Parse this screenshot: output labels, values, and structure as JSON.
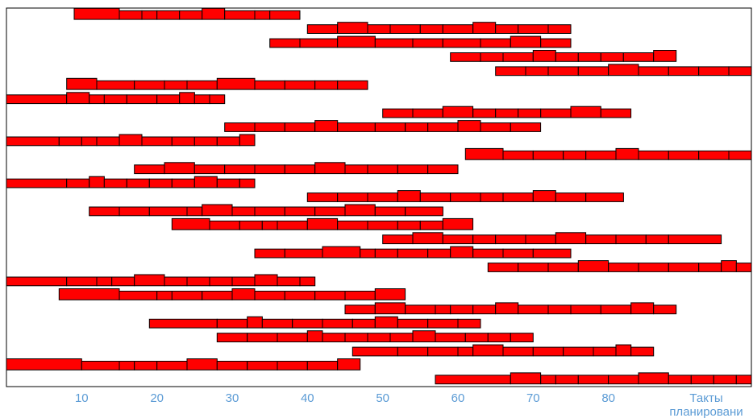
{
  "chart_data": {
    "type": "bar",
    "orientation": "horizontal-timeline",
    "xlabel_lines": [
      "Такты",
      "планировани"
    ],
    "xlim": [
      0,
      99
    ],
    "xticks": [
      10,
      20,
      30,
      40,
      50,
      60,
      70,
      80
    ],
    "grid": false,
    "legend": "none",
    "bar_color": "#ff0000",
    "bar_outline_color": "#000000",
    "rows": [
      {
        "y": 1,
        "segments": [
          [
            9,
            15
          ],
          [
            15,
            18
          ],
          [
            18,
            20
          ],
          [
            20,
            23
          ],
          [
            23,
            26
          ],
          [
            26,
            29
          ],
          [
            29,
            33
          ],
          [
            33,
            35
          ],
          [
            35,
            39
          ]
        ]
      },
      {
        "y": 2,
        "segments": [
          [
            40,
            44
          ],
          [
            44,
            48
          ],
          [
            48,
            51
          ],
          [
            51,
            55
          ],
          [
            55,
            58
          ],
          [
            58,
            62
          ],
          [
            62,
            65
          ],
          [
            65,
            68
          ],
          [
            68,
            72
          ],
          [
            72,
            75
          ]
        ]
      },
      {
        "y": 3,
        "segments": [
          [
            35,
            39
          ],
          [
            39,
            44
          ],
          [
            44,
            49
          ],
          [
            49,
            54
          ],
          [
            54,
            58
          ],
          [
            58,
            63
          ],
          [
            63,
            67
          ],
          [
            67,
            71
          ],
          [
            71,
            75
          ]
        ]
      },
      {
        "y": 4,
        "segments": [
          [
            59,
            63
          ],
          [
            63,
            66
          ],
          [
            66,
            70
          ],
          [
            70,
            73
          ],
          [
            73,
            76
          ],
          [
            76,
            79
          ],
          [
            79,
            82
          ],
          [
            82,
            86
          ],
          [
            86,
            89
          ]
        ]
      },
      {
        "y": 5,
        "segments": [
          [
            65,
            69
          ],
          [
            69,
            72
          ],
          [
            72,
            76
          ],
          [
            76,
            80
          ],
          [
            80,
            84
          ],
          [
            84,
            88
          ],
          [
            88,
            92
          ],
          [
            92,
            96
          ],
          [
            96,
            99
          ]
        ]
      },
      {
        "y": 6,
        "segments": [
          [
            8,
            12
          ],
          [
            12,
            17
          ],
          [
            17,
            21
          ],
          [
            21,
            24
          ],
          [
            24,
            28
          ],
          [
            28,
            33
          ],
          [
            33,
            37
          ],
          [
            37,
            41
          ],
          [
            41,
            44
          ],
          [
            44,
            48
          ]
        ]
      },
      {
        "y": 7,
        "segments": [
          [
            0,
            8
          ],
          [
            8,
            11
          ],
          [
            11,
            13
          ],
          [
            13,
            16
          ],
          [
            16,
            20
          ],
          [
            20,
            23
          ],
          [
            23,
            25
          ],
          [
            25,
            27
          ],
          [
            27,
            29
          ]
        ]
      },
      {
        "y": 8,
        "segments": [
          [
            50,
            54
          ],
          [
            54,
            58
          ],
          [
            58,
            62
          ],
          [
            62,
            65
          ],
          [
            65,
            68
          ],
          [
            68,
            71
          ],
          [
            71,
            75
          ],
          [
            75,
            79
          ],
          [
            79,
            83
          ]
        ]
      },
      {
        "y": 9,
        "segments": [
          [
            29,
            33
          ],
          [
            33,
            37
          ],
          [
            37,
            41
          ],
          [
            41,
            44
          ],
          [
            44,
            49
          ],
          [
            49,
            53
          ],
          [
            53,
            56
          ],
          [
            56,
            60
          ],
          [
            60,
            63
          ],
          [
            63,
            67
          ],
          [
            67,
            71
          ]
        ]
      },
      {
        "y": 10,
        "segments": [
          [
            0,
            7
          ],
          [
            7,
            10
          ],
          [
            10,
            12
          ],
          [
            12,
            15
          ],
          [
            15,
            18
          ],
          [
            18,
            22
          ],
          [
            22,
            25
          ],
          [
            25,
            28
          ],
          [
            28,
            31
          ],
          [
            31,
            33
          ]
        ]
      },
      {
        "y": 11,
        "segments": [
          [
            61,
            66
          ],
          [
            66,
            70
          ],
          [
            70,
            74
          ],
          [
            74,
            77
          ],
          [
            77,
            81
          ],
          [
            81,
            84
          ],
          [
            84,
            88
          ],
          [
            88,
            92
          ],
          [
            92,
            96
          ],
          [
            96,
            99
          ]
        ]
      },
      {
        "y": 12,
        "segments": [
          [
            17,
            21
          ],
          [
            21,
            25
          ],
          [
            25,
            29
          ],
          [
            29,
            33
          ],
          [
            33,
            37
          ],
          [
            37,
            41
          ],
          [
            41,
            45
          ],
          [
            45,
            48
          ],
          [
            48,
            52
          ],
          [
            52,
            56
          ],
          [
            56,
            60
          ]
        ]
      },
      {
        "y": 13,
        "segments": [
          [
            0,
            8
          ],
          [
            8,
            11
          ],
          [
            11,
            13
          ],
          [
            13,
            16
          ],
          [
            16,
            19
          ],
          [
            19,
            22
          ],
          [
            22,
            25
          ],
          [
            25,
            28
          ],
          [
            28,
            31
          ],
          [
            31,
            33
          ]
        ]
      },
      {
        "y": 14,
        "segments": [
          [
            40,
            44
          ],
          [
            44,
            48
          ],
          [
            48,
            52
          ],
          [
            52,
            55
          ],
          [
            55,
            59
          ],
          [
            59,
            63
          ],
          [
            63,
            66
          ],
          [
            66,
            70
          ],
          [
            70,
            73
          ],
          [
            73,
            77
          ],
          [
            77,
            82
          ]
        ]
      },
      {
        "y": 15,
        "segments": [
          [
            11,
            15
          ],
          [
            15,
            19
          ],
          [
            19,
            24
          ],
          [
            24,
            26
          ],
          [
            26,
            30
          ],
          [
            30,
            33
          ],
          [
            33,
            37
          ],
          [
            37,
            41
          ],
          [
            41,
            45
          ],
          [
            45,
            49
          ],
          [
            49,
            53
          ],
          [
            53,
            58
          ]
        ]
      },
      {
        "y": 16,
        "segments": [
          [
            22,
            27
          ],
          [
            27,
            31
          ],
          [
            31,
            34
          ],
          [
            34,
            36
          ],
          [
            36,
            40
          ],
          [
            40,
            44
          ],
          [
            44,
            48
          ],
          [
            48,
            52
          ],
          [
            52,
            55
          ],
          [
            55,
            58
          ],
          [
            58,
            62
          ]
        ]
      },
      {
        "y": 17,
        "segments": [
          [
            50,
            54
          ],
          [
            54,
            58
          ],
          [
            58,
            62
          ],
          [
            62,
            65
          ],
          [
            65,
            69
          ],
          [
            69,
            73
          ],
          [
            73,
            77
          ],
          [
            77,
            81
          ],
          [
            81,
            85
          ],
          [
            85,
            88
          ],
          [
            88,
            95
          ]
        ]
      },
      {
        "y": 18,
        "segments": [
          [
            33,
            37
          ],
          [
            37,
            42
          ],
          [
            42,
            47
          ],
          [
            47,
            49
          ],
          [
            49,
            52
          ],
          [
            52,
            56
          ],
          [
            56,
            59
          ],
          [
            59,
            62
          ],
          [
            62,
            66
          ],
          [
            66,
            70
          ],
          [
            70,
            75
          ]
        ]
      },
      {
        "y": 19,
        "segments": [
          [
            64,
            68
          ],
          [
            68,
            72
          ],
          [
            72,
            76
          ],
          [
            76,
            80
          ],
          [
            80,
            84
          ],
          [
            84,
            88
          ],
          [
            88,
            92
          ],
          [
            92,
            95
          ],
          [
            95,
            97
          ],
          [
            97,
            99
          ]
        ]
      },
      {
        "y": 20,
        "segments": [
          [
            0,
            8
          ],
          [
            8,
            12
          ],
          [
            12,
            14
          ],
          [
            14,
            17
          ],
          [
            17,
            21
          ],
          [
            21,
            24
          ],
          [
            24,
            27
          ],
          [
            27,
            30
          ],
          [
            30,
            33
          ],
          [
            33,
            36
          ],
          [
            36,
            39
          ],
          [
            39,
            41
          ]
        ]
      },
      {
        "y": 21,
        "segments": [
          [
            7,
            15
          ],
          [
            15,
            20
          ],
          [
            20,
            22
          ],
          [
            22,
            26
          ],
          [
            26,
            30
          ],
          [
            30,
            33
          ],
          [
            33,
            37
          ],
          [
            37,
            41
          ],
          [
            41,
            45
          ],
          [
            45,
            49
          ],
          [
            49,
            53
          ]
        ]
      },
      {
        "y": 22,
        "segments": [
          [
            45,
            49
          ],
          [
            49,
            53
          ],
          [
            53,
            57
          ],
          [
            57,
            59
          ],
          [
            59,
            62
          ],
          [
            62,
            65
          ],
          [
            65,
            68
          ],
          [
            68,
            72
          ],
          [
            72,
            75
          ],
          [
            75,
            79
          ],
          [
            79,
            83
          ],
          [
            83,
            86
          ],
          [
            86,
            89
          ]
        ]
      },
      {
        "y": 23,
        "segments": [
          [
            19,
            28
          ],
          [
            28,
            32
          ],
          [
            32,
            34
          ],
          [
            34,
            38
          ],
          [
            38,
            42
          ],
          [
            42,
            46
          ],
          [
            46,
            49
          ],
          [
            49,
            52
          ],
          [
            52,
            56
          ],
          [
            56,
            60
          ],
          [
            60,
            63
          ]
        ]
      },
      {
        "y": 24,
        "segments": [
          [
            28,
            32
          ],
          [
            32,
            36
          ],
          [
            36,
            40
          ],
          [
            40,
            42
          ],
          [
            42,
            45
          ],
          [
            45,
            48
          ],
          [
            48,
            51
          ],
          [
            51,
            54
          ],
          [
            54,
            57
          ],
          [
            57,
            61
          ],
          [
            61,
            64
          ],
          [
            64,
            67
          ],
          [
            67,
            70
          ]
        ]
      },
      {
        "y": 25,
        "segments": [
          [
            46,
            52
          ],
          [
            52,
            56
          ],
          [
            56,
            60
          ],
          [
            60,
            62
          ],
          [
            62,
            66
          ],
          [
            66,
            70
          ],
          [
            70,
            74
          ],
          [
            74,
            78
          ],
          [
            78,
            81
          ],
          [
            81,
            83
          ],
          [
            83,
            86
          ]
        ]
      },
      {
        "y": 26,
        "segments": [
          [
            0,
            10
          ],
          [
            10,
            15
          ],
          [
            15,
            17
          ],
          [
            17,
            20
          ],
          [
            20,
            24
          ],
          [
            24,
            28
          ],
          [
            28,
            32
          ],
          [
            32,
            36
          ],
          [
            36,
            40
          ],
          [
            40,
            44
          ],
          [
            44,
            47
          ]
        ]
      },
      {
        "y": 27,
        "segments": [
          [
            57,
            67
          ],
          [
            67,
            71
          ],
          [
            71,
            73
          ],
          [
            73,
            76
          ],
          [
            76,
            80
          ],
          [
            80,
            84
          ],
          [
            84,
            88
          ],
          [
            88,
            91
          ],
          [
            91,
            94
          ],
          [
            94,
            97
          ],
          [
            97,
            99
          ]
        ]
      }
    ]
  }
}
